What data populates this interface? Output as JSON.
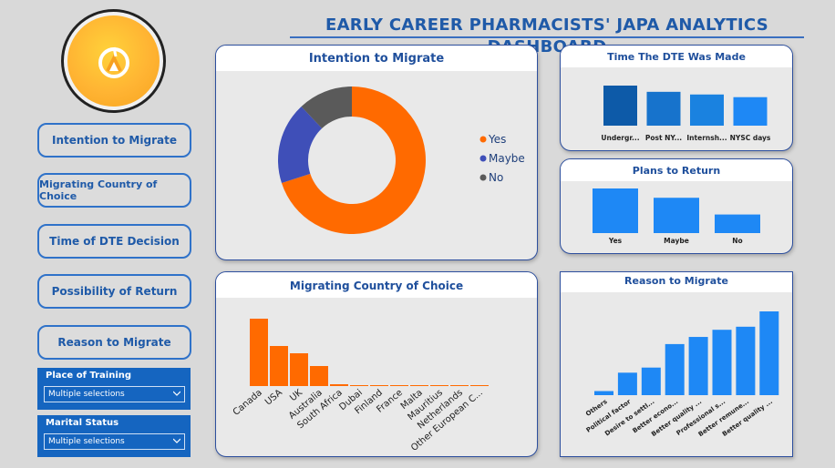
{
  "title": "EARLY CAREER PHARMACISTS' JAPA ANALYTICS DASHBOARD",
  "nav": [
    {
      "label": "Intention to Migrate"
    },
    {
      "label": "Migrating Country of Choice"
    },
    {
      "label": "Time of DTE Decision"
    },
    {
      "label": "Possibility of Return"
    },
    {
      "label": "Reason to Migrate"
    }
  ],
  "slicers": [
    {
      "title": "Place of Training",
      "value": "Multiple selections"
    },
    {
      "title": "Marital Status",
      "value": "Multiple selections"
    }
  ],
  "colors": {
    "accent": "#1f5aa8",
    "orange": "#ff6a00",
    "blue_bar": "#1e88f5",
    "yes": "#ff6a00",
    "maybe": "#3f4fb8",
    "no": "#5a5a5a"
  },
  "chart_data": [
    {
      "type": "pie",
      "title": "Intention to Migrate",
      "categories": [
        "Yes",
        "Maybe",
        "No"
      ],
      "values": [
        70,
        18,
        12
      ],
      "legend": "right",
      "donut": true
    },
    {
      "type": "bar",
      "title": "Time The DTE Was Made",
      "categories": [
        "Undergr...",
        "Post NY...",
        "Internsh...",
        "NYSC days"
      ],
      "values": [
        45,
        38,
        35,
        32
      ],
      "colors": [
        "#0d5aa8",
        "#1773cc",
        "#1a82e0",
        "#1e88f5"
      ]
    },
    {
      "type": "bar",
      "title": "Plans to Return",
      "categories": [
        "Yes",
        "Maybe",
        "No"
      ],
      "values": [
        48,
        38,
        20
      ]
    },
    {
      "type": "bar",
      "title": "Migrating Country of Choice",
      "categories": [
        "Canada",
        "USA",
        "UK",
        "Australia",
        "South Africa",
        "Dubai",
        "Finland",
        "France",
        "Malta",
        "Mauritius",
        "Netherlands",
        "Other European C..."
      ],
      "values": [
        74,
        44,
        36,
        22,
        2,
        1,
        1,
        1,
        1,
        1,
        1,
        1
      ]
    },
    {
      "type": "bar",
      "title": "Reason to Migrate",
      "categories": [
        "Others",
        "Political factor",
        "Desire to settl...",
        "Better econo...",
        "Better quality ...",
        "Professional s...",
        "Better remune...",
        "Better quality ..."
      ],
      "values": [
        4,
        22,
        27,
        50,
        57,
        64,
        67,
        82
      ]
    }
  ]
}
